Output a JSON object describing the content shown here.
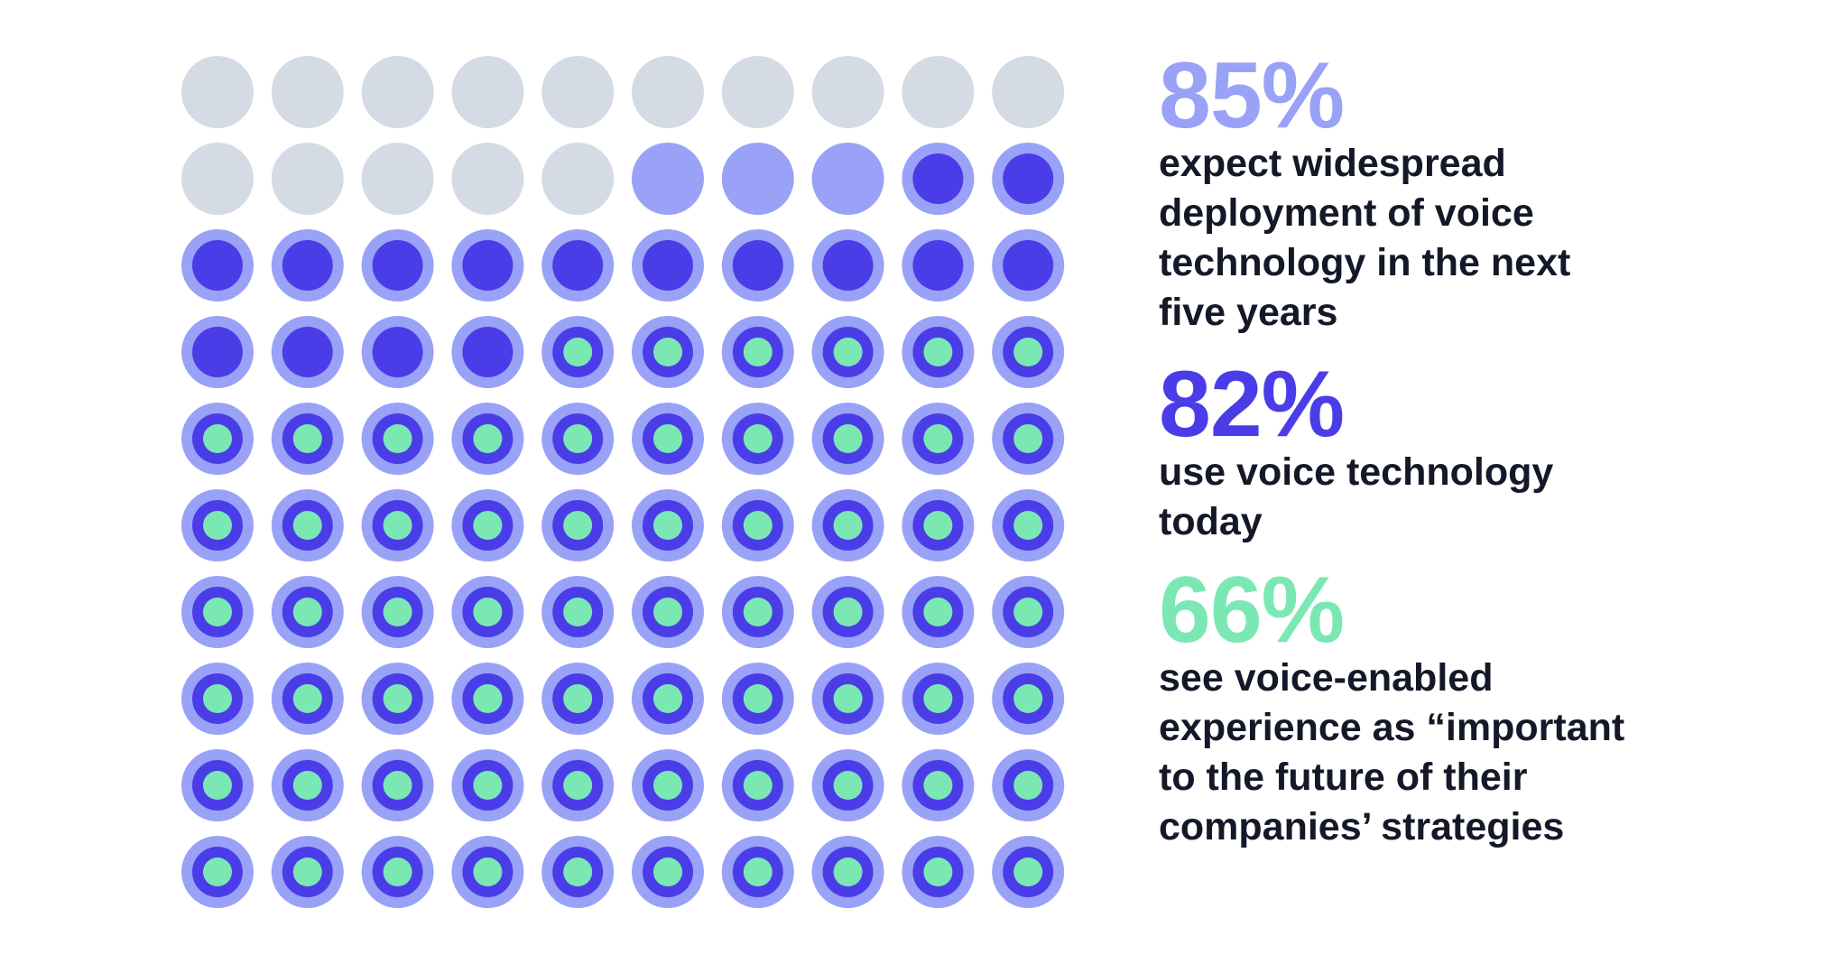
{
  "colors": {
    "empty": "#d5dbe5",
    "expect": "#99a2f6",
    "use": "#4a3de8",
    "see": "#7be8b4",
    "text": "#141828"
  },
  "chart_data": {
    "type": "dot-matrix",
    "total": 100,
    "rows": 10,
    "cols": 10,
    "series": [
      {
        "name": "expect",
        "value": 85,
        "color": "#99a2f6"
      },
      {
        "name": "use",
        "value": 82,
        "color": "#4a3de8"
      },
      {
        "name": "see",
        "value": 66,
        "color": "#7be8b4"
      }
    ]
  },
  "stats": [
    {
      "pct": "85%",
      "text": [
        "expect widespread",
        "deployment of voice",
        "technology in the next",
        "five years"
      ]
    },
    {
      "pct": "82%",
      "text": [
        "use voice technology",
        "today"
      ]
    },
    {
      "pct": "66%",
      "text": [
        "see voice-enabled",
        "experience as “important",
        "to the future of their",
        "companies’ strategies"
      ]
    }
  ]
}
